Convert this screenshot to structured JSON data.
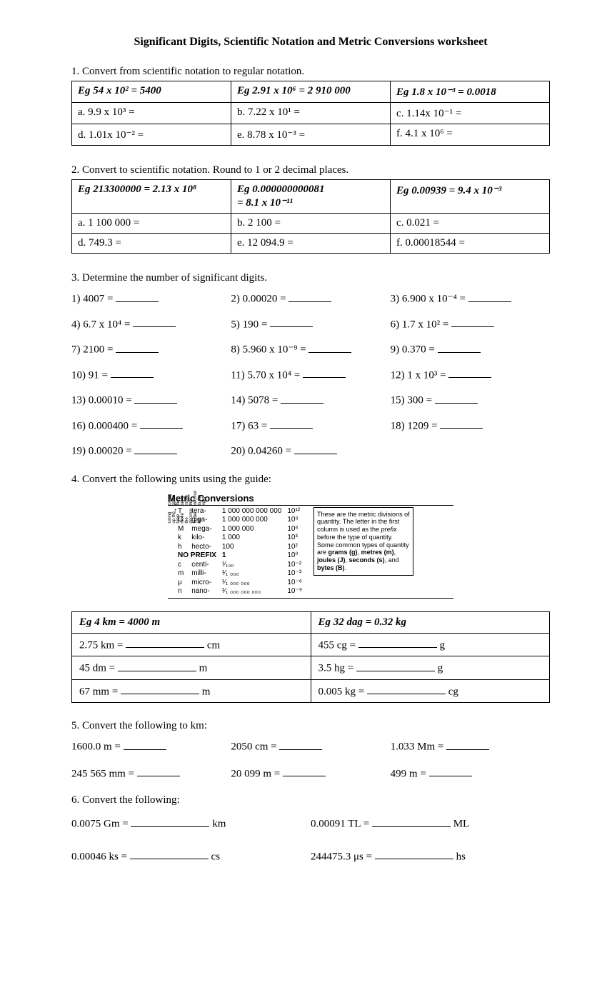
{
  "title": "Significant Digits, Scientific Notation and Metric Conversions worksheet",
  "s1": {
    "head": "1.   Convert from scientific notation to regular notation.",
    "eg": [
      "Eg  54  x 10² = 5400",
      "Eg  2.91  x 10⁶ = 2 910 000",
      "Eg  1.8  x 10⁻³ = 0.0018"
    ],
    "rows": [
      [
        "a.    9.9  x 10³ =",
        "b.    7.22 x 10¹ =",
        "c.    1.14x 10⁻¹ ="
      ],
      [
        "d.    1.01x 10⁻² =",
        "e.    8.78 x 10⁻³ =",
        "f.    4.1  x 10⁶ ="
      ]
    ]
  },
  "s2": {
    "head": "2.   Convert to scientific notation.  Round to 1 or 2 decimal places.",
    "eg": [
      "Eg  213300000 = 2.13 x 10⁸",
      "Eg  0.000000000081\n= 8.1 x 10⁻¹¹",
      "Eg  0.00939 = 9.4 x 10⁻³"
    ],
    "rows": [
      [
        "a.    1 100 000 =",
        "b.    2 100 =",
        "c.    0.021 ="
      ],
      [
        "d.    749.3 =",
        "e.    12 094.9 =",
        "f.    0.00018544 ="
      ]
    ]
  },
  "s3": {
    "head": "3.   Determine the number of significant digits.",
    "items": [
      "1) 4007 =",
      "2) 0.00020 =",
      "3) 6.900 x 10⁻⁴ =",
      "4) 6.7 x 10⁴ =",
      "5) 190 =",
      "6) 1.7 x 10² =",
      "7) 2100 =",
      "8) 5.960 x 10⁻⁹ =",
      "9) 0.370 =",
      "10) 91 =",
      "11) 5.70 x 10⁴ =",
      "12) 1 x 10³ =",
      "13) 0.00010 =",
      "14) 5078 =",
      "15) 300 =",
      "16) 0.000400 =",
      "17) 63 =",
      "18) 1209 =",
      "19) 0.00020 =",
      "20) 0.04260 =",
      ""
    ]
  },
  "s4": {
    "head": "4.   Convert the following units using the guide:",
    "metric_title": "Metric Conversions",
    "prefixes_top": [
      [
        "T",
        "tera-",
        "1 000 000 000 000",
        "10¹²"
      ],
      [
        "G",
        "giga-",
        "1 000 000 000",
        "10⁹"
      ],
      [
        "M",
        "mega-",
        "1 000 000",
        "10⁶"
      ],
      [
        "k",
        "kilo-",
        "1 000",
        "10³"
      ],
      [
        "h",
        "hecto-",
        "100",
        "10²"
      ]
    ],
    "no_prefix": [
      "NO PREFIX",
      "",
      "1",
      "10⁰"
    ],
    "prefixes_bot": [
      [
        "c",
        "centi-",
        "¹⁄₁₀₀",
        "10⁻²"
      ],
      [
        "m",
        "milli-",
        "¹⁄₁ ₀₀₀",
        "10⁻³"
      ],
      [
        "μ",
        "micro-",
        "¹⁄₁ ₀₀₀ ₀₀₀",
        "10⁻⁶"
      ],
      [
        "n",
        "nano-",
        "¹⁄₁ ₀₀₀ ₀₀₀ ₀₀₀",
        "10⁻⁹"
      ]
    ],
    "note": "These are the metric divisions of quantity.  The letter in the first column is used as the prefix before the type of quantity.  Some common types of quantity are grams (g), metres (m), joules (J), seconds (s), and bytes (B).",
    "tbl": {
      "eg": [
        "Eg  4 km = 4000 m",
        "Eg  32 dag = 0.32 kg"
      ],
      "rows": [
        [
          "2.75 km =",
          "cm",
          "455 cg =",
          "g"
        ],
        [
          "45 dm =",
          "m",
          "3.5 hg =",
          "g"
        ],
        [
          "67 mm =",
          "m",
          "0.005 kg =",
          "cg"
        ]
      ]
    }
  },
  "s5": {
    "head": "5.   Convert the following to km:",
    "rows": [
      [
        "1600.0  m    =",
        "2050 cm    =",
        "1.033 Mm    ="
      ],
      [
        "245 565 mm =",
        "20 099 m   =",
        "499 m          ="
      ]
    ]
  },
  "s6": {
    "head": "6.   Convert the following:",
    "rows": [
      [
        "0.0075 Gm    =",
        "km",
        "0.00091 TL    =",
        "ML"
      ],
      [
        "0.00046 ks    =",
        "cs",
        "244475.3  μs  =",
        "hs"
      ]
    ]
  }
}
